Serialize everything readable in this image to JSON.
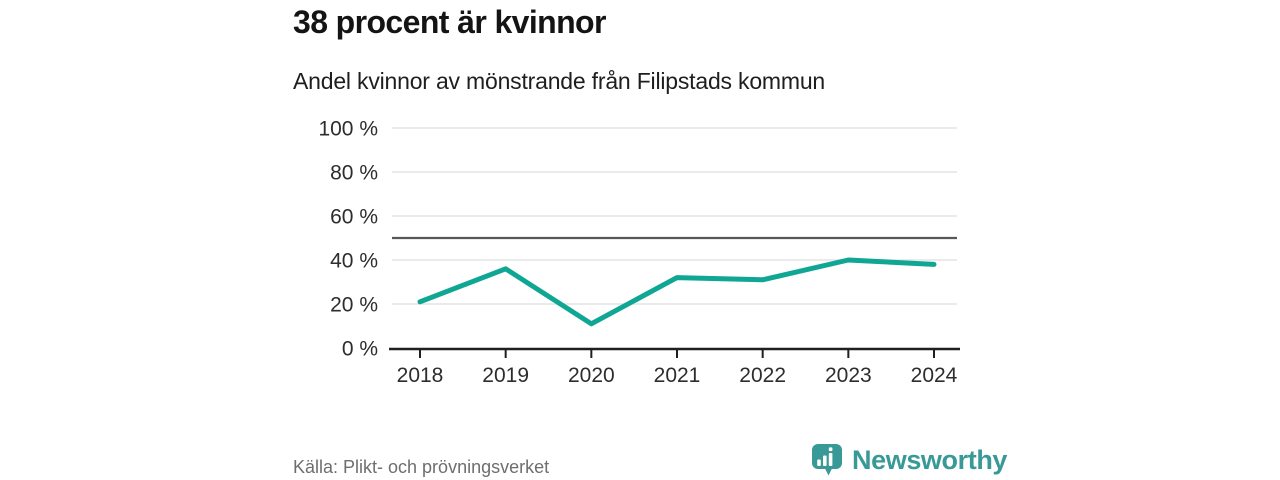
{
  "chart_data": {
    "type": "line",
    "title": "38 procent är kvinnor",
    "subtitle": "Andel kvinnor av mönstrande från Filipstads kommun",
    "categories": [
      "2018",
      "2019",
      "2020",
      "2021",
      "2022",
      "2023",
      "2024"
    ],
    "values": [
      21,
      36,
      11,
      32,
      31,
      40,
      38
    ],
    "ylim": [
      0,
      100
    ],
    "yticks": [
      0,
      20,
      40,
      60,
      80,
      100
    ],
    "ytick_suffix": " %",
    "reference_line": 50,
    "grid": true,
    "legend": false
  },
  "footer": {
    "source": "Källa: Plikt- och prövningsverket",
    "brand": "Newsworthy"
  },
  "icons": {
    "logo": "newsworthy-speech-bubble-bar-chart-icon"
  },
  "colors": {
    "line": "#10a694",
    "brand": "#389996",
    "grid": "#e3e3e3",
    "reference_line": "#58585a",
    "axis": "#1f1f1f",
    "tick_text": "#2d2d2d",
    "title_text": "#141414",
    "source_text": "#6e6e6e",
    "background": "#ffffff"
  }
}
